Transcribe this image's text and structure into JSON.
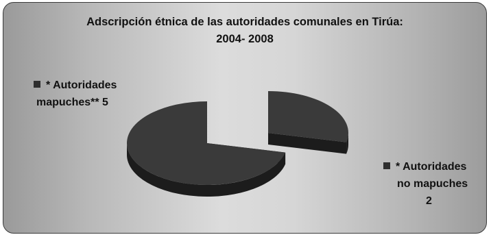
{
  "title_line1": "Adscripción étnica de las autoridades comunales en Tirúa:",
  "title_line2": "2004- 2008",
  "colors": {
    "slice_top": "#3a3a3a",
    "slice_side": "#1c1c1c",
    "legend_marker": "#2e2e2e",
    "frame_border": "#3a3a3a"
  },
  "chart_data": {
    "type": "pie",
    "style": "3d-exploded",
    "slices": [
      {
        "label_lines": [
          "* Autoridades",
          "mapuches** 5"
        ],
        "value": 5,
        "exploded": false
      },
      {
        "label_lines": [
          "* Autoridades",
          "no mapuches",
          "2"
        ],
        "value": 2,
        "exploded": true
      }
    ]
  }
}
